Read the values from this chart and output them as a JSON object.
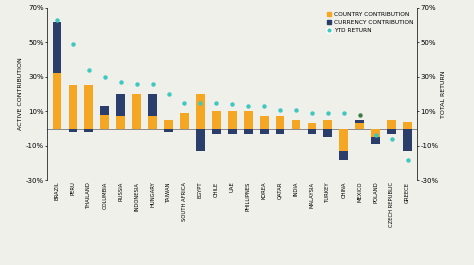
{
  "categories": [
    "BRAZIL",
    "PERU",
    "THAILAND",
    "COLUMBIA",
    "RUSSIA",
    "INDONESIA",
    "HUNGARY",
    "TAIWAN",
    "SOUTH AFRICA",
    "EGYPT",
    "CHILE",
    "UAE",
    "PHILLIPNES",
    "KOREA",
    "QATAR",
    "INDIA",
    "MALAYSIA",
    "TURKEY",
    "CHINA",
    "MEXICO",
    "POLAND",
    "CZECH REPUBLIC",
    "GREECE"
  ],
  "country_contribution": [
    32,
    25,
    25,
    8,
    7,
    20,
    7,
    5,
    9,
    20,
    10,
    10,
    10,
    7,
    7,
    5,
    3,
    5,
    -13,
    3,
    -5,
    5,
    4
  ],
  "currency_contribution": [
    30,
    -2,
    -2,
    5,
    13,
    0,
    13,
    -2,
    0,
    -13,
    -3,
    -3,
    -3,
    -3,
    -3,
    0,
    -3,
    -5,
    -5,
    2,
    -4,
    -3,
    -13
  ],
  "ytd_return": [
    63,
    49,
    34,
    30,
    27,
    26,
    26,
    20,
    15,
    15,
    15,
    14,
    13,
    13,
    11,
    11,
    9,
    9,
    9,
    8,
    -4,
    -6,
    -18
  ],
  "country_color": "#F5A623",
  "currency_color": "#2B3D6B",
  "ytd_color": "#3EC8C0",
  "ytd_mexico_color": "#3a7d44",
  "background_color": "#f0f0eb",
  "ylim": [
    -30,
    70
  ],
  "ylabel_left": "ACTIVE CONTRIBUTION",
  "ylabel_right": "TOTAL RETURN",
  "yticks": [
    -30,
    -10,
    10,
    30,
    50,
    70
  ],
  "yticklabels": [
    "-30%",
    "-10%",
    "10%",
    "30%",
    "50%",
    "70%"
  ],
  "bar_width": 0.55,
  "legend_country": "COUNTRY CONTRIBUTION",
  "legend_currency": "CURRENCY CONTRIBUTION",
  "legend_ytd": "YTD RETURN"
}
